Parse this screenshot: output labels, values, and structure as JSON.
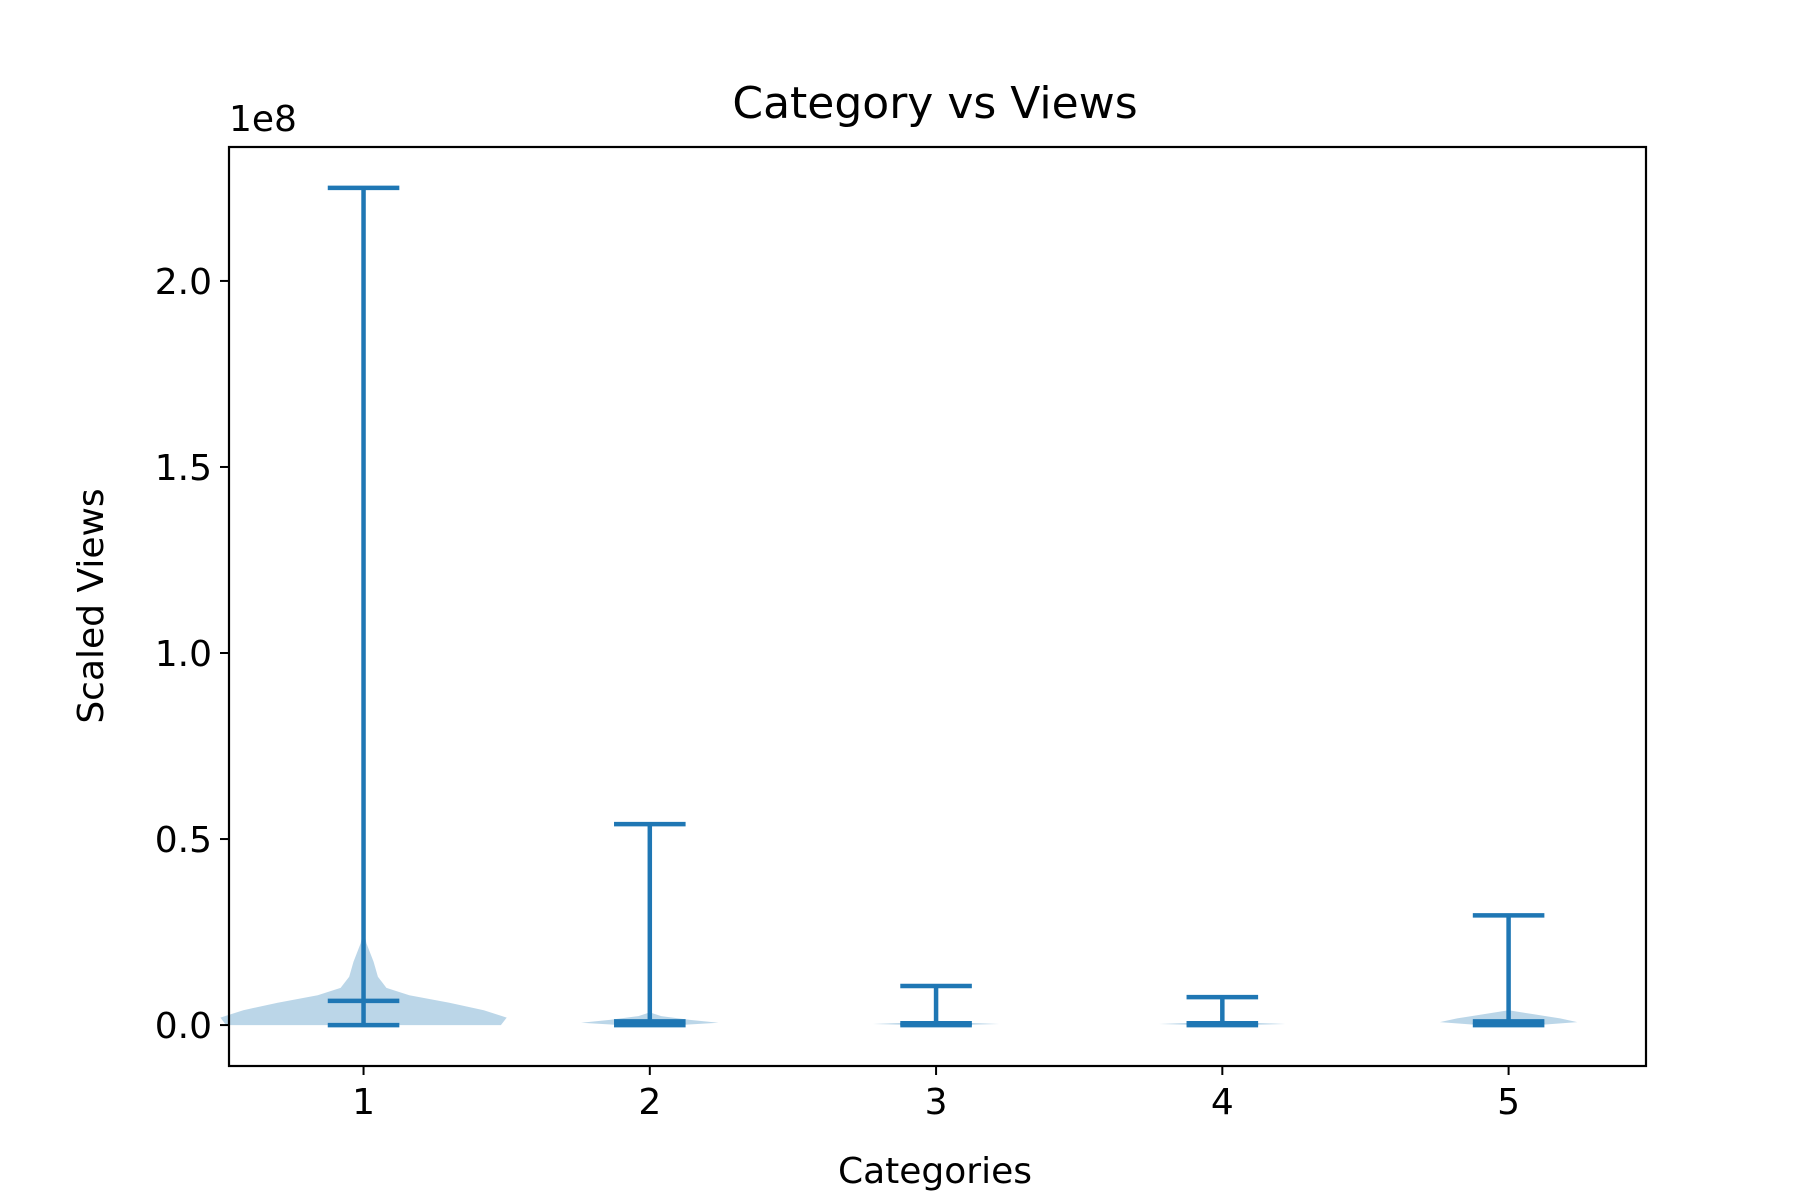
{
  "chart_data": {
    "type": "violin",
    "title": "Category vs Views",
    "xlabel": "Categories",
    "ylabel": "Scaled Views",
    "y_offset_label": "1e8",
    "y_scale": 100000000,
    "ylim": [
      -0.11,
      2.36
    ],
    "xlim": [
      0.53,
      5.48
    ],
    "yticks": [
      0.0,
      0.5,
      1.0,
      1.5,
      2.0
    ],
    "ytick_labels": [
      "0.0",
      "0.5",
      "1.0",
      "1.5",
      "2.0"
    ],
    "categories": [
      1,
      2,
      3,
      4,
      5
    ],
    "xtick_labels": [
      "1",
      "2",
      "3",
      "4",
      "5"
    ],
    "series": [
      {
        "category": 1,
        "min": 0.0,
        "max": 2.25,
        "mean": 0.065,
        "profile": [
          [
            0.0,
            0.48
          ],
          [
            0.02,
            0.5
          ],
          [
            0.04,
            0.42
          ],
          [
            0.06,
            0.3
          ],
          [
            0.08,
            0.16
          ],
          [
            0.1,
            0.08
          ],
          [
            0.13,
            0.05
          ],
          [
            0.17,
            0.035
          ],
          [
            0.22,
            0.01
          ],
          [
            0.26,
            0.0
          ]
        ]
      },
      {
        "category": 2,
        "min": 0.0,
        "max": 0.54,
        "mean": 0.01,
        "profile": [
          [
            0.0,
            0.1
          ],
          [
            0.006,
            0.24
          ],
          [
            0.014,
            0.14
          ],
          [
            0.024,
            0.04
          ],
          [
            0.034,
            0.0
          ]
        ]
      },
      {
        "category": 3,
        "min": 0.0,
        "max": 0.105,
        "mean": 0.005,
        "profile": [
          [
            0.0,
            0.06
          ],
          [
            0.003,
            0.22
          ],
          [
            0.007,
            0.08
          ],
          [
            0.012,
            0.0
          ]
        ]
      },
      {
        "category": 4,
        "min": 0.0,
        "max": 0.075,
        "mean": 0.005,
        "profile": [
          [
            0.0,
            0.06
          ],
          [
            0.003,
            0.22
          ],
          [
            0.007,
            0.08
          ],
          [
            0.012,
            0.0
          ]
        ]
      },
      {
        "category": 5,
        "min": 0.0,
        "max": 0.295,
        "mean": 0.01,
        "profile": [
          [
            0.0,
            0.1
          ],
          [
            0.008,
            0.24
          ],
          [
            0.018,
            0.18
          ],
          [
            0.03,
            0.08
          ],
          [
            0.04,
            0.0
          ]
        ]
      }
    ],
    "colors": {
      "line": "#1f77b4",
      "fill": "#1f77b4",
      "fill_opacity": 0.3
    },
    "grid": false,
    "legend": "none"
  }
}
